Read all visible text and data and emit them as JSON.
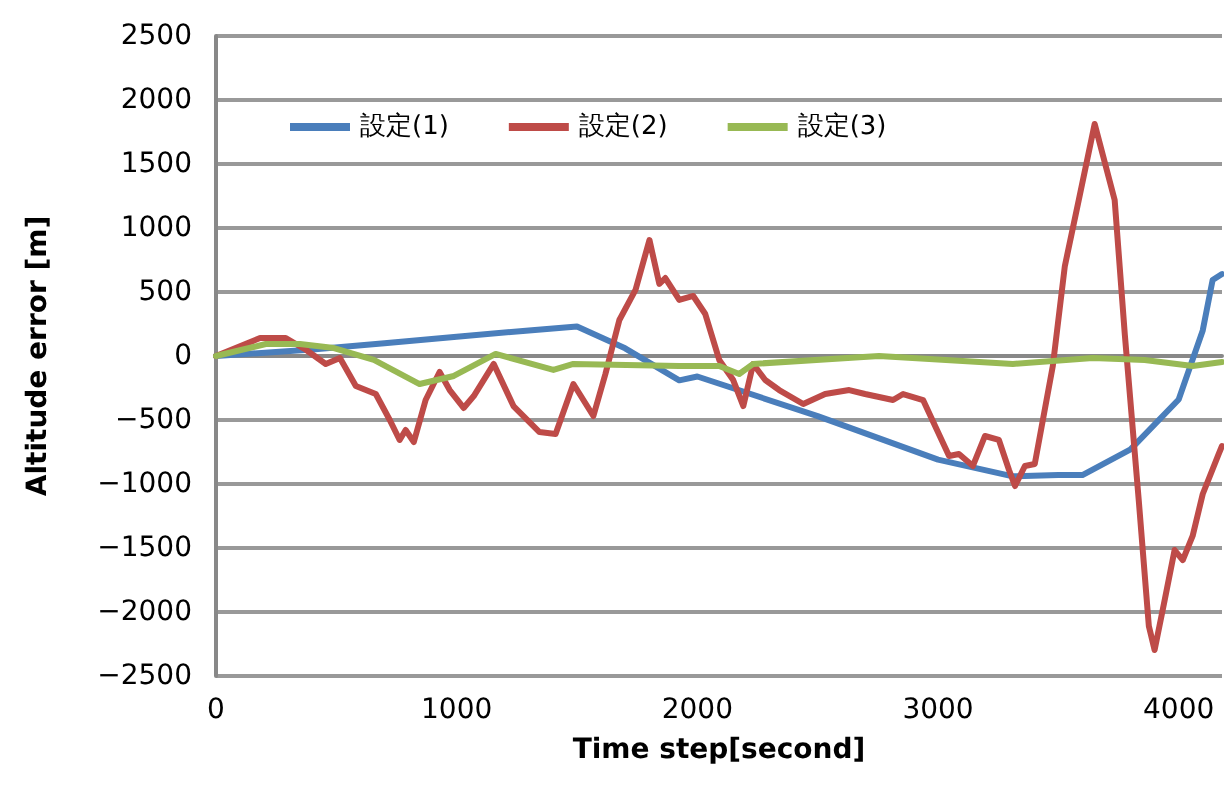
{
  "chart_data": {
    "type": "line",
    "xlabel": "Time step[second]",
    "ylabel": "Altitude error [m]",
    "xlim": [
      0,
      4180
    ],
    "xticks": [
      0,
      1000,
      2000,
      3000,
      4000
    ],
    "ylim": [
      -2500,
      2500
    ],
    "yticks": [
      -2500,
      -2000,
      -1500,
      -1000,
      -500,
      0,
      500,
      1000,
      1500,
      2000,
      2500
    ],
    "grid": "y",
    "legend": "top left",
    "marker": "none",
    "line_style": "solid",
    "series": [
      {
        "name": "設定(1)",
        "color": "#4a7ebb",
        "x": [
          0,
          400,
          700,
          1000,
          1300,
          1500,
          1700,
          1925,
          2000,
          2500,
          3000,
          3311,
          3500,
          3600,
          3800,
          4000,
          4100,
          4141,
          4180
        ],
        "values": [
          0,
          50,
          100,
          150,
          200,
          230,
          60,
          -190,
          -160,
          -470,
          -810,
          -940,
          -930,
          -930,
          -730,
          -340,
          200,
          594,
          640
        ]
      },
      {
        "name": "設定(2)",
        "color": "#be4b48",
        "x": [
          0,
          183,
          290,
          375,
          456,
          515,
          581,
          664,
          722,
          763,
          788,
          822,
          871,
          929,
          971,
          1029,
          1071,
          1154,
          1236,
          1344,
          1411,
          1485,
          1568,
          1618,
          1676,
          1743,
          1801,
          1842,
          1867,
          1925,
          1983,
          2033,
          2091,
          2149,
          2191,
          2232,
          2282,
          2340,
          2440,
          2531,
          2631,
          2697,
          2813,
          2855,
          2938,
          2988,
          3046,
          3087,
          3145,
          3195,
          3253,
          3295,
          3320,
          3361,
          3402,
          3477,
          3527,
          3585,
          3651,
          3734,
          3776,
          3834,
          3876,
          3900,
          3942,
          3983,
          4017,
          4058,
          4100,
          4166,
          4180
        ],
        "values": [
          0,
          140,
          140,
          47,
          -62,
          -16,
          -234,
          -297,
          -500,
          -656,
          -578,
          -672,
          -344,
          -125,
          -266,
          -406,
          -313,
          -62,
          -391,
          -594,
          -609,
          -219,
          -469,
          -141,
          281,
          516,
          906,
          563,
          609,
          438,
          469,
          328,
          -31,
          -188,
          -391,
          -62,
          -188,
          -266,
          -375,
          -297,
          -266,
          -297,
          -344,
          -297,
          -344,
          -547,
          -781,
          -766,
          -859,
          -625,
          -656,
          -891,
          -1016,
          -859,
          -844,
          -78,
          703,
          1219,
          1813,
          1219,
          172,
          -1125,
          -2109,
          -2297,
          -1906,
          -1516,
          -1594,
          -1406,
          -1078,
          -766,
          -703
        ]
      },
      {
        "name": "設定(3)",
        "color": "#98b954",
        "x": [
          0,
          207,
          349,
          490,
          656,
          846,
          988,
          1162,
          1402,
          1485,
          1925,
          2091,
          2174,
          2232,
          2755,
          3311,
          3643,
          3859,
          4058,
          4180
        ],
        "values": [
          0,
          94,
          94,
          62,
          -31,
          -219,
          -156,
          16,
          -109,
          -62,
          -78,
          -78,
          -141,
          -62,
          0,
          -62,
          -16,
          -31,
          -78,
          -47
        ]
      }
    ]
  }
}
